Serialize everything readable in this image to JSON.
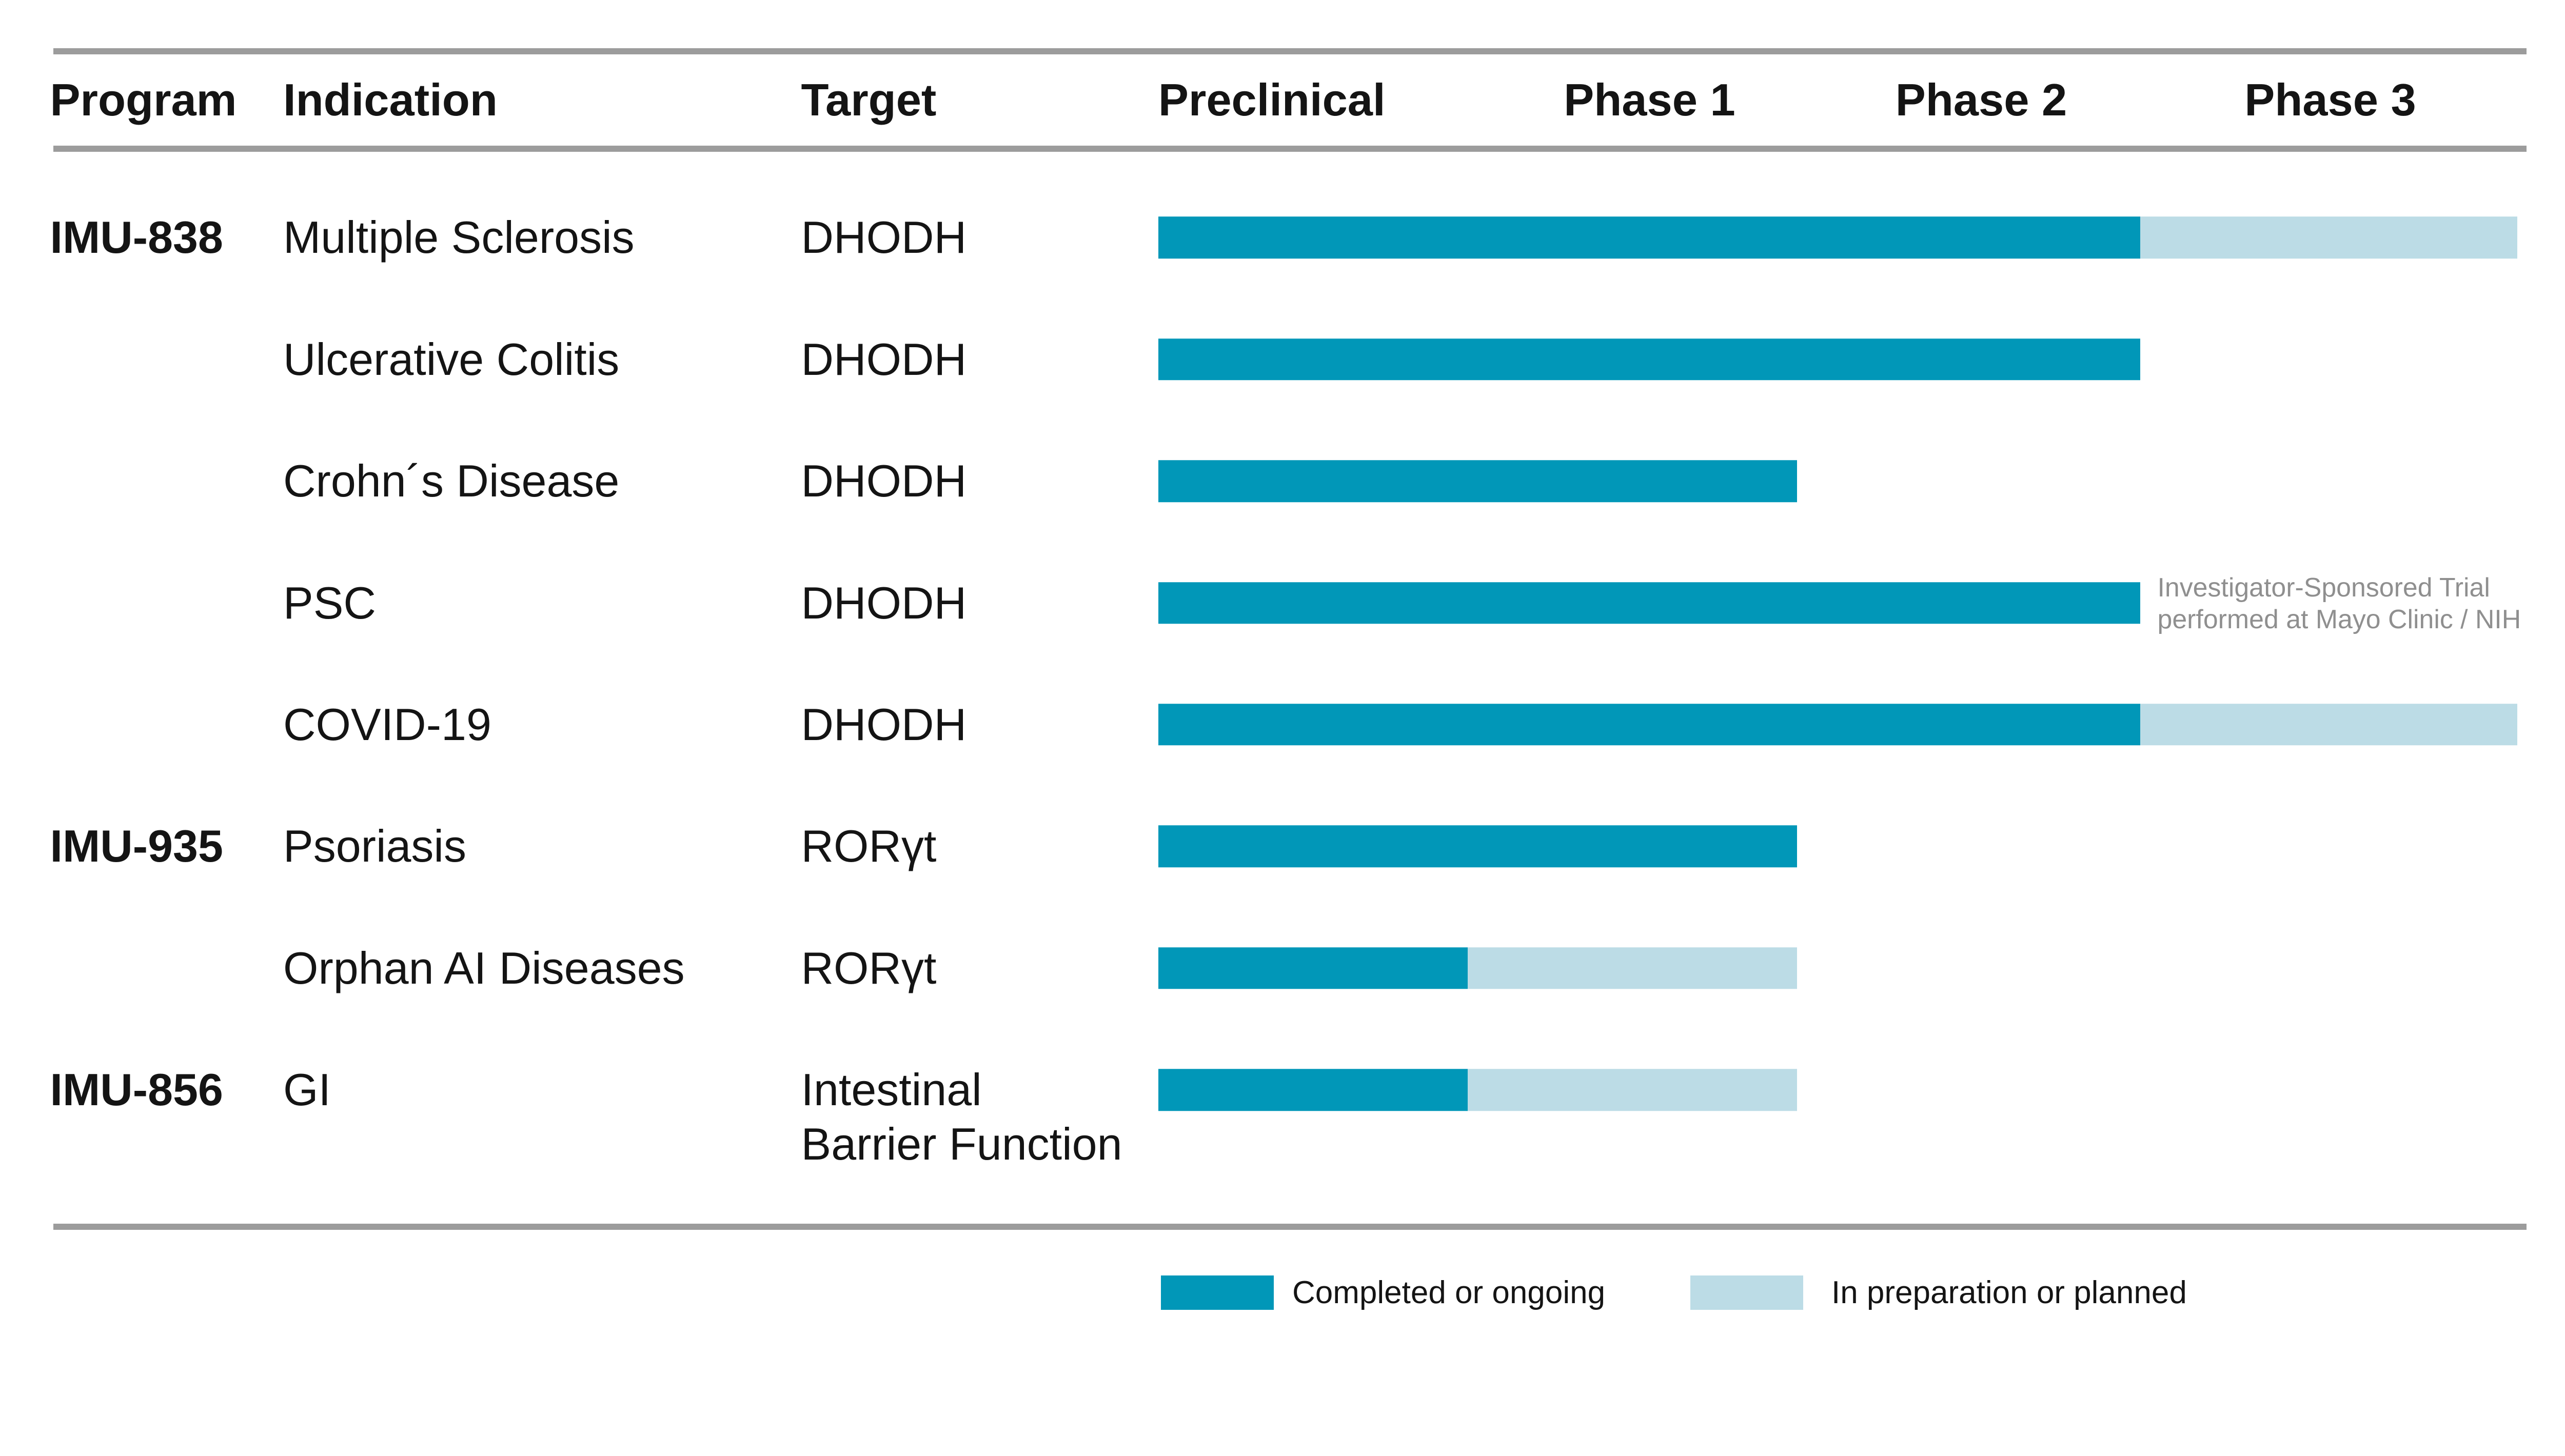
{
  "header": {
    "program": "Program",
    "indication": "Indication",
    "target": "Target",
    "phases": [
      "Preclinical",
      "Phase 1",
      "Phase 2",
      "Phase 3"
    ]
  },
  "rows": [
    {
      "program": "IMU-838",
      "indication": "Multiple Sclerosis",
      "target_lines": [
        "DHODH"
      ],
      "segments": [
        {
          "status": "completed",
          "from": 0,
          "to": 0.7224
        },
        {
          "status": "planned",
          "from": 0.7224,
          "to": 1.0
        }
      ]
    },
    {
      "program": "",
      "indication": "Ulcerative Colitis",
      "target_lines": [
        "DHODH"
      ],
      "segments": [
        {
          "status": "completed",
          "from": 0,
          "to": 0.7224
        }
      ]
    },
    {
      "program": "",
      "indication": "Crohn´s Disease",
      "target_lines": [
        "DHODH"
      ],
      "segments": [
        {
          "status": "completed",
          "from": 0,
          "to": 0.4701
        }
      ]
    },
    {
      "program": "",
      "indication": "PSC",
      "target_lines": [
        "DHODH"
      ],
      "segments": [
        {
          "status": "completed",
          "from": 0,
          "to": 0.7224
        }
      ],
      "annotation": "Investigator-Sponsored Trial\nperformed at Mayo Clinic / NIH"
    },
    {
      "program": "",
      "indication": "COVID-19",
      "target_lines": [
        "DHODH"
      ],
      "segments": [
        {
          "status": "completed",
          "from": 0,
          "to": 0.7224
        },
        {
          "status": "planned",
          "from": 0.7224,
          "to": 1.0
        }
      ]
    },
    {
      "program": "IMU-935",
      "indication": "Psoriasis",
      "target_lines": [
        "RORγt"
      ],
      "segments": [
        {
          "status": "completed",
          "from": 0,
          "to": 0.4701
        }
      ]
    },
    {
      "program": "",
      "indication": "Orphan AI Diseases",
      "target_lines": [
        "RORγt"
      ],
      "segments": [
        {
          "status": "completed",
          "from": 0,
          "to": 0.2276
        },
        {
          "status": "planned",
          "from": 0.2276,
          "to": 0.4701
        }
      ]
    },
    {
      "program": "IMU-856",
      "indication": "GI",
      "target_lines": [
        "Intestinal",
        "Barrier Function"
      ],
      "segments": [
        {
          "status": "completed",
          "from": 0,
          "to": 0.2276
        },
        {
          "status": "planned",
          "from": 0.2276,
          "to": 0.4701
        }
      ]
    }
  ],
  "legend": {
    "items": [
      {
        "status": "completed",
        "label": "Completed or ongoing"
      },
      {
        "status": "planned",
        "label": "In preparation or planned"
      }
    ]
  },
  "colors": {
    "completed": "#0197b8",
    "planned": "#bcdce6",
    "grid_line": "#9c9c9c",
    "text": "#141414",
    "annotation_text": "#8f8f8f"
  },
  "chart_data": {
    "type": "bar",
    "orientation": "horizontal",
    "stacked": true,
    "title": "",
    "x_axis": {
      "labels": [
        "Preclinical",
        "Phase 1",
        "Phase 2",
        "Phase 3"
      ],
      "range": [
        0,
        4
      ],
      "grid": false
    },
    "categories": [
      "Multiple Sclerosis",
      "Ulcerative Colitis",
      "Crohn´s Disease",
      "PSC",
      "COVID-19",
      "Psoriasis",
      "Orphan AI Diseases",
      "GI"
    ],
    "programs": [
      "IMU-838",
      "IMU-838",
      "IMU-838",
      "IMU-838",
      "IMU-838",
      "IMU-935",
      "IMU-935",
      "IMU-856"
    ],
    "targets": [
      "DHODH",
      "DHODH",
      "DHODH",
      "DHODH",
      "DHODH",
      "RORγt",
      "RORγt",
      "Intestinal Barrier Function"
    ],
    "series": [
      {
        "name": "Completed or ongoing",
        "values": [
          2.89,
          2.89,
          1.88,
          2.89,
          2.89,
          1.88,
          0.91,
          0.91
        ]
      },
      {
        "name": "In preparation or planned",
        "values": [
          1.11,
          0,
          0,
          0,
          1.11,
          0,
          0.97,
          0.97
        ]
      }
    ],
    "annotations": [
      {
        "category": "PSC",
        "text": "Investigator-Sponsored Trial performed at Mayo Clinic / NIH"
      }
    ],
    "legend_position": "bottom"
  }
}
